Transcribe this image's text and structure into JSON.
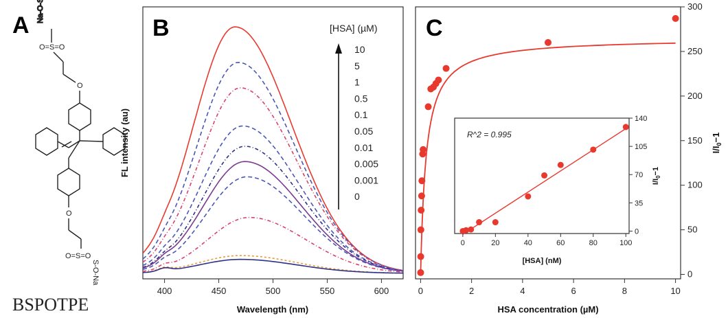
{
  "panels": {
    "a": "A",
    "b": "B",
    "c": "C"
  },
  "compound_label": "BSPOTPE",
  "structure_labels": {
    "top": "Na-O-S",
    "bottom": "S-O-Na"
  },
  "colors": {
    "accent_red": "#e8392f",
    "blue_dash": "#4a57b5",
    "navy": "#2d2f86",
    "purple": "#7b3a90",
    "pink": "#d9416a"
  },
  "chart_data": [
    {
      "id": "B",
      "type": "line",
      "xlabel": "Wavelength (nm)",
      "ylabel": "FL intensity (au)",
      "xlim": [
        380,
        620
      ],
      "ylim": [
        0,
        1
      ],
      "xticks": [
        400,
        450,
        500,
        550,
        600
      ],
      "legend_title": "[HSA] (µM)",
      "legend_entries": [
        "10",
        "5",
        "1",
        "0.5",
        "0.1",
        "0.05",
        "0.01",
        "0.005",
        "0.001",
        "0"
      ],
      "series": [
        {
          "name": "10",
          "peak": 465,
          "amp": 0.97,
          "color": "#e8392f",
          "dash": ""
        },
        {
          "name": "5",
          "peak": 468,
          "amp": 0.83,
          "color": "#4a57b5",
          "dash": "6,4"
        },
        {
          "name": "1",
          "peak": 470,
          "amp": 0.73,
          "color": "#d9416a",
          "dash": "5,3,1,3"
        },
        {
          "name": "0.5",
          "peak": 472,
          "amp": 0.58,
          "color": "#4a57b5",
          "dash": "6,4"
        },
        {
          "name": "0.1",
          "peak": 474,
          "amp": 0.5,
          "color": "#2d2f86",
          "dash": "5,3,1,3"
        },
        {
          "name": "0.05",
          "peak": 474,
          "amp": 0.44,
          "color": "#7b3a90",
          "dash": ""
        },
        {
          "name": "0.01",
          "peak": 476,
          "amp": 0.38,
          "color": "#4a57b5",
          "dash": "6,4"
        },
        {
          "name": "0.005",
          "peak": 478,
          "amp": 0.22,
          "color": "#d9416a",
          "dash": "5,3,1,3"
        },
        {
          "name": "0.001",
          "peak": 470,
          "amp": 0.07,
          "color": "#e89a3a",
          "dash": "3,3"
        },
        {
          "name": "0",
          "peak": 470,
          "amp": 0.055,
          "color": "#2d2f86",
          "dash": ""
        }
      ]
    },
    {
      "id": "C",
      "type": "scatter",
      "xlabel": "HSA concentration (µM)",
      "ylabel": "I/I0−1",
      "xlim": [
        -0.2,
        10.2
      ],
      "ylim": [
        -5,
        300
      ],
      "xticks": [
        0,
        2,
        4,
        6,
        8,
        10
      ],
      "yticks": [
        0,
        50,
        100,
        150,
        200,
        250,
        300
      ],
      "points": [
        {
          "x": 0.001,
          "y": 2
        },
        {
          "x": 0.005,
          "y": 20
        },
        {
          "x": 0.01,
          "y": 50
        },
        {
          "x": 0.02,
          "y": 72
        },
        {
          "x": 0.04,
          "y": 88
        },
        {
          "x": 0.05,
          "y": 105
        },
        {
          "x": 0.08,
          "y": 135
        },
        {
          "x": 0.1,
          "y": 140
        },
        {
          "x": 0.3,
          "y": 188
        },
        {
          "x": 0.4,
          "y": 208
        },
        {
          "x": 0.5,
          "y": 210
        },
        {
          "x": 0.6,
          "y": 214
        },
        {
          "x": 0.7,
          "y": 218
        },
        {
          "x": 1.0,
          "y": 231
        },
        {
          "x": 5.0,
          "y": 260
        },
        {
          "x": 10.0,
          "y": 287
        }
      ],
      "fit_plateau": 265,
      "fit_k": 0.22
    },
    {
      "id": "C-inset",
      "type": "scatter",
      "xlabel": "[HSA] (nM)",
      "ylabel": "I/I0−1",
      "xlim": [
        -5,
        102
      ],
      "ylim": [
        -3,
        140
      ],
      "xticks": [
        0,
        20,
        40,
        60,
        80,
        100
      ],
      "yticks": [
        0,
        35,
        70,
        105,
        140
      ],
      "annotation": "R^2 = 0.995",
      "points": [
        {
          "x": 0,
          "y": 0
        },
        {
          "x": 2,
          "y": 1
        },
        {
          "x": 5,
          "y": 2
        },
        {
          "x": 10,
          "y": 11
        },
        {
          "x": 20,
          "y": 11
        },
        {
          "x": 40,
          "y": 43
        },
        {
          "x": 50,
          "y": 69
        },
        {
          "x": 60,
          "y": 82
        },
        {
          "x": 80,
          "y": 101
        },
        {
          "x": 100,
          "y": 129
        }
      ],
      "fit": {
        "slope": 1.31,
        "intercept": -4
      }
    }
  ]
}
